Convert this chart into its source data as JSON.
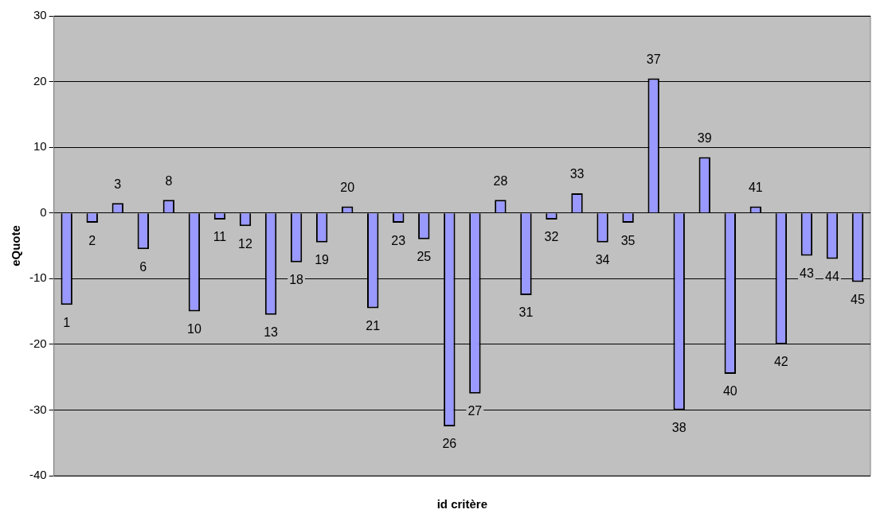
{
  "chart_data": {
    "type": "bar",
    "xlabel": "id critère",
    "ylabel": "eQuote",
    "categories": [
      "1",
      "2",
      "3",
      "6",
      "8",
      "10",
      "11",
      "12",
      "13",
      "18",
      "19",
      "20",
      "21",
      "23",
      "25",
      "26",
      "27",
      "28",
      "31",
      "32",
      "33",
      "34",
      "35",
      "37",
      "38",
      "39",
      "40",
      "41",
      "42",
      "43",
      "44",
      "45"
    ],
    "values": [
      -14,
      -1.5,
      1.5,
      -5.5,
      2,
      -15,
      -1,
      -2,
      -15.5,
      -7.5,
      -4.5,
      1,
      -14.5,
      -1.5,
      -4,
      -32.5,
      -27.5,
      2,
      -12.5,
      -1,
      3,
      -4.5,
      -1.5,
      20.5,
      -30,
      8.5,
      -24.5,
      1,
      -20,
      -6.5,
      -7,
      -10.5
    ],
    "color": "#9999ff",
    "ylim": [
      -40,
      30
    ],
    "yticks": [
      -40,
      -30,
      -20,
      -10,
      0,
      10,
      20,
      30
    ],
    "grid": "y",
    "legend": false
  }
}
